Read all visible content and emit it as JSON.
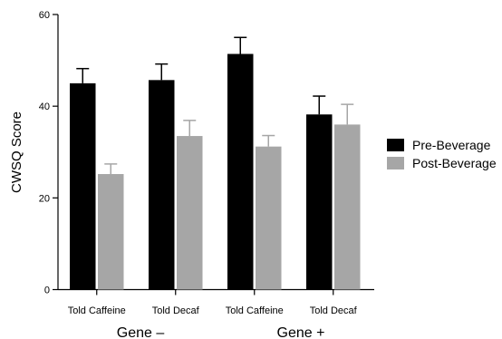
{
  "chart_data": {
    "type": "bar",
    "title": "",
    "xlabel": "",
    "ylabel": "CWSQ Score",
    "ylim": [
      0,
      60
    ],
    "yticks": [
      0,
      20,
      40,
      60
    ],
    "categories": [
      "Told Caffeine",
      "Told Decaf",
      "Told Caffeine",
      "Told Decaf"
    ],
    "groups": [
      {
        "label": "Gene –",
        "categories": [
          "Told Caffeine",
          "Told Decaf"
        ]
      },
      {
        "label": "Gene +",
        "categories": [
          "Told Caffeine",
          "Told Decaf"
        ]
      }
    ],
    "series": [
      {
        "name": "Pre-Beverage",
        "color": "#000000",
        "values": [
          45,
          45.7,
          51.4,
          38.2
        ],
        "errors": [
          3.2,
          3.5,
          3.6,
          4.0
        ]
      },
      {
        "name": "Post-Beverage",
        "color": "#a6a6a6",
        "values": [
          25.2,
          33.5,
          31.2,
          36
        ],
        "errors": [
          2.2,
          3.4,
          2.4,
          4.4
        ]
      }
    ],
    "legend_position": "right",
    "grid": false
  }
}
